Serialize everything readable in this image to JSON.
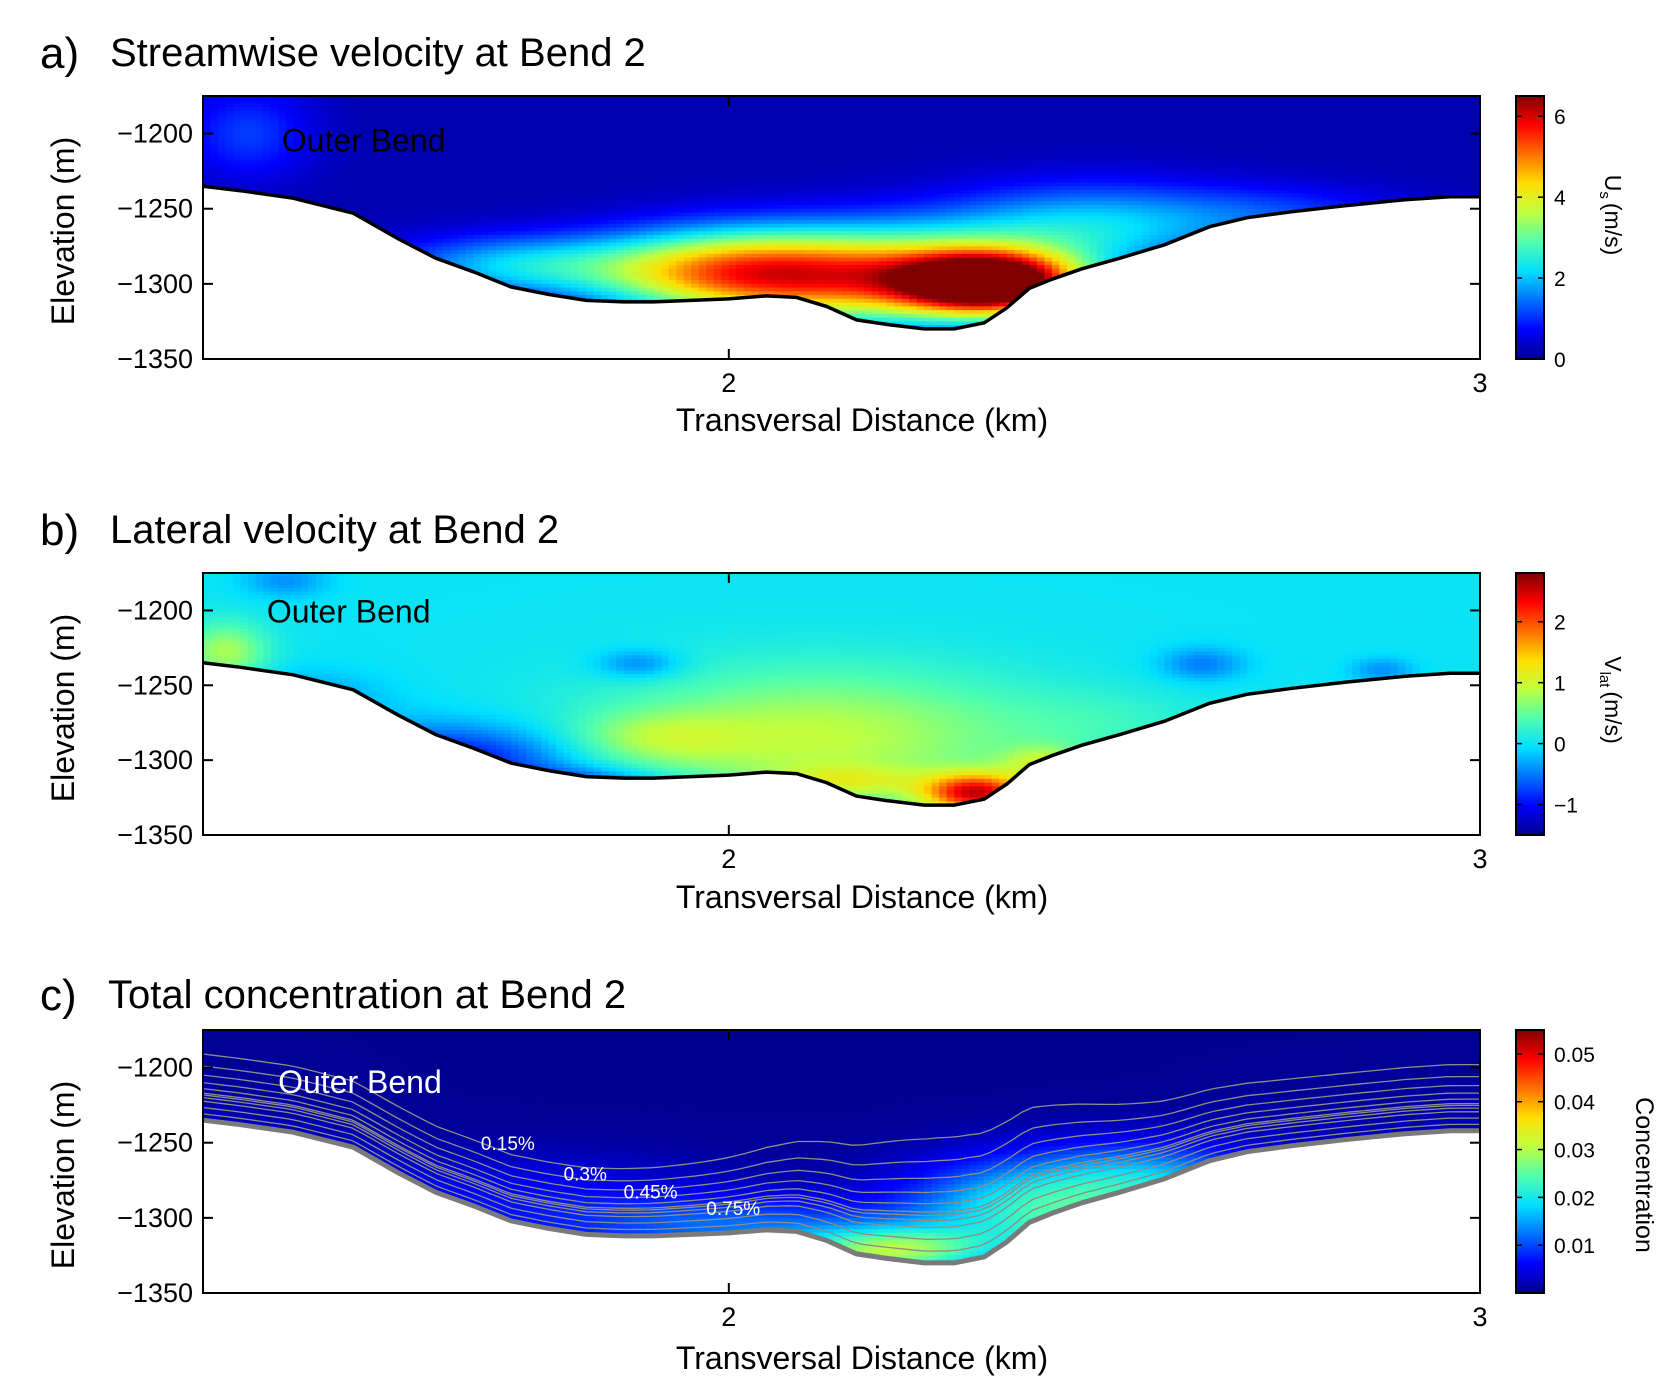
{
  "chart_data": [
    {
      "type": "heatmap",
      "panel_letter": "a)",
      "title": "Streamwise velocity at Bend 2",
      "xlabel": "Transversal Distance (km)",
      "ylabel": "Elevation (m)",
      "xlim": [
        1.3,
        3.0
      ],
      "ylim": [
        -1350,
        -1175
      ],
      "xticks": [
        2,
        3
      ],
      "xtick_labels": [
        "2",
        "3"
      ],
      "yticks": [
        -1200,
        -1250,
        -1300,
        -1350
      ],
      "ytick_labels": [
        "−1200",
        "−1250",
        "−1300",
        "−1350"
      ],
      "annotation": "Outer Bend",
      "annotation_position": [
        1.405,
        -1212
      ],
      "annotation_color": "#000000",
      "colorbar": {
        "label": "U s (m/s)",
        "label_main": "U",
        "label_sub": "s",
        "label_unit": "(m/s)",
        "range": [
          0,
          6.5
        ],
        "ticks": [
          0,
          2,
          4,
          6
        ],
        "tick_labels": [
          "0",
          "2",
          "4",
          "6"
        ]
      },
      "field": {
        "background": 0.2,
        "blobs": [
          {
            "x": 1.36,
            "y": -1200,
            "sx": 0.06,
            "sy": 22,
            "v": 0.9
          },
          {
            "x": 2.35,
            "y": -1300,
            "sx": 0.08,
            "sy": 14,
            "v": 6.3
          },
          {
            "x": 2.18,
            "y": -1295,
            "sx": 0.17,
            "sy": 22,
            "v": 4.6
          },
          {
            "x": 1.98,
            "y": -1292,
            "sx": 0.12,
            "sy": 19,
            "v": 2.8
          },
          {
            "x": 1.72,
            "y": -1288,
            "sx": 0.12,
            "sy": 14,
            "v": 1.8
          },
          {
            "x": 2.48,
            "y": -1262,
            "sx": 0.14,
            "sy": 20,
            "v": 1.8
          },
          {
            "x": 2.74,
            "y": -1255,
            "sx": 0.12,
            "sy": 14,
            "v": 0.8
          }
        ]
      }
    },
    {
      "type": "heatmap",
      "panel_letter": "b)",
      "title": "Lateral velocity at Bend 2",
      "xlabel": "Transversal Distance (km)",
      "ylabel": "Elevation (m)",
      "xlim": [
        1.3,
        3.0
      ],
      "ylim": [
        -1350,
        -1175
      ],
      "xticks": [
        2,
        3
      ],
      "xtick_labels": [
        "2",
        "3"
      ],
      "yticks": [
        -1200,
        -1250,
        -1300,
        -1350
      ],
      "ytick_labels": [
        "−1200",
        "−1250",
        "−1300",
        "−1350"
      ],
      "annotation": "Outer Bend",
      "annotation_position": [
        1.385,
        -1208
      ],
      "annotation_color": "#000000",
      "colorbar": {
        "label": "V lat (m/s)",
        "label_main": "V",
        "label_sub": "lat",
        "label_unit": "(m/s)",
        "range": [
          -1.5,
          2.8
        ],
        "ticks": [
          -1,
          0,
          1,
          2
        ],
        "tick_labels": [
          "−1",
          "0",
          "1",
          "2"
        ]
      },
      "field": {
        "background": 0.0,
        "blobs": [
          {
            "x": 2.33,
            "y": -1322,
            "sx": 0.05,
            "sy": 9,
            "v": 2.3
          },
          {
            "x": 2.42,
            "y": -1302,
            "sx": 0.04,
            "sy": 8,
            "v": 0.7
          },
          {
            "x": 2.12,
            "y": -1285,
            "sx": 0.2,
            "sy": 32,
            "v": 0.9
          },
          {
            "x": 2.16,
            "y": -1314,
            "sx": 0.07,
            "sy": 7,
            "v": 0.6
          },
          {
            "x": 1.9,
            "y": -1285,
            "sx": 0.08,
            "sy": 12,
            "v": 0.5
          },
          {
            "x": 1.33,
            "y": -1228,
            "sx": 0.04,
            "sy": 14,
            "v": 0.8
          },
          {
            "x": 1.62,
            "y": -1300,
            "sx": 0.12,
            "sy": 16,
            "v": -1.1
          },
          {
            "x": 1.8,
            "y": -1316,
            "sx": 0.09,
            "sy": 7,
            "v": -0.8
          },
          {
            "x": 1.42,
            "y": -1258,
            "sx": 0.08,
            "sy": 12,
            "v": -0.4
          },
          {
            "x": 1.88,
            "y": -1236,
            "sx": 0.04,
            "sy": 7,
            "v": -0.5
          },
          {
            "x": 2.63,
            "y": -1236,
            "sx": 0.04,
            "sy": 8,
            "v": -0.5
          },
          {
            "x": 2.87,
            "y": -1240,
            "sx": 0.03,
            "sy": 6,
            "v": -0.4
          },
          {
            "x": 1.41,
            "y": -1180,
            "sx": 0.04,
            "sy": 8,
            "v": -0.4
          },
          {
            "x": 2.5,
            "y": -1275,
            "sx": 0.1,
            "sy": 16,
            "v": 0.2
          }
        ]
      }
    },
    {
      "type": "heatmap",
      "panel_letter": "c)",
      "title": "Total concentration at Bend 2",
      "xlabel": "Transversal Distance (km)",
      "ylabel": "Elevation (m)",
      "xlim": [
        1.3,
        3.0
      ],
      "ylim": [
        -1350,
        -1175
      ],
      "xticks": [
        2,
        3
      ],
      "xtick_labels": [
        "2",
        "3"
      ],
      "yticks": [
        -1200,
        -1250,
        -1300,
        -1350
      ],
      "ytick_labels": [
        "−1200",
        "−1250",
        "−1300",
        "−1350"
      ],
      "annotation": "Outer Bend",
      "annotation_position": [
        1.4,
        -1217
      ],
      "annotation_color": "#ffffff",
      "colorbar": {
        "label": "Concentration",
        "range": [
          0,
          0.055
        ],
        "ticks": [
          0.01,
          0.02,
          0.03,
          0.04,
          0.05
        ],
        "tick_labels": [
          "0.01",
          "0.02",
          "0.03",
          "0.04",
          "0.05"
        ]
      },
      "contour_labels": [
        {
          "text": "0.15%",
          "x": 1.67,
          "y": -1255
        },
        {
          "text": "0.3%",
          "x": 1.78,
          "y": -1275
        },
        {
          "text": "0.45%",
          "x": 1.86,
          "y": -1287
        },
        {
          "text": "0.75%",
          "x": 1.97,
          "y": -1298
        }
      ],
      "field": {
        "background": 0.0,
        "blobs": [
          {
            "x": 2.21,
            "y": -1322,
            "sx": 0.09,
            "sy": 11,
            "v": 0.024
          },
          {
            "x": 2.4,
            "y": -1295,
            "sx": 0.12,
            "sy": 24,
            "v": 0.02
          },
          {
            "x": 2.56,
            "y": -1275,
            "sx": 0.1,
            "sy": 18,
            "v": 0.012
          },
          {
            "x": 2.0,
            "y": -1305,
            "sx": 0.14,
            "sy": 14,
            "v": 0.009
          },
          {
            "x": 1.75,
            "y": -1285,
            "sx": 0.16,
            "sy": 20,
            "v": 0.005
          }
        ]
      }
    }
  ],
  "bed_profile": {
    "x": [
      1.3,
      1.35,
      1.42,
      1.5,
      1.56,
      1.61,
      1.66,
      1.71,
      1.76,
      1.81,
      1.86,
      1.9,
      1.95,
      2.0,
      2.05,
      2.09,
      2.13,
      2.17,
      2.21,
      2.26,
      2.3,
      2.34,
      2.37,
      2.4,
      2.43,
      2.47,
      2.52,
      2.58,
      2.64,
      2.69,
      2.75,
      2.82,
      2.9,
      2.96,
      3.0
    ],
    "y": [
      -1235,
      -1238,
      -1243,
      -1253,
      -1270,
      -1283,
      -1292,
      -1302,
      -1307,
      -1311,
      -1312,
      -1312,
      -1311,
      -1310,
      -1308,
      -1309,
      -1315,
      -1324,
      -1327,
      -1330,
      -1330,
      -1326,
      -1316,
      -1303,
      -1297,
      -1290,
      -1283,
      -1274,
      -1262,
      -1256,
      -1252,
      -1248,
      -1244,
      -1242,
      -1242
    ]
  },
  "colormap": [
    "#00008f",
    "#0000ff",
    "#0070ff",
    "#00dfff",
    "#50ffaf",
    "#bfff40",
    "#ffdf00",
    "#ff7000",
    "#ff0000",
    "#800000"
  ]
}
